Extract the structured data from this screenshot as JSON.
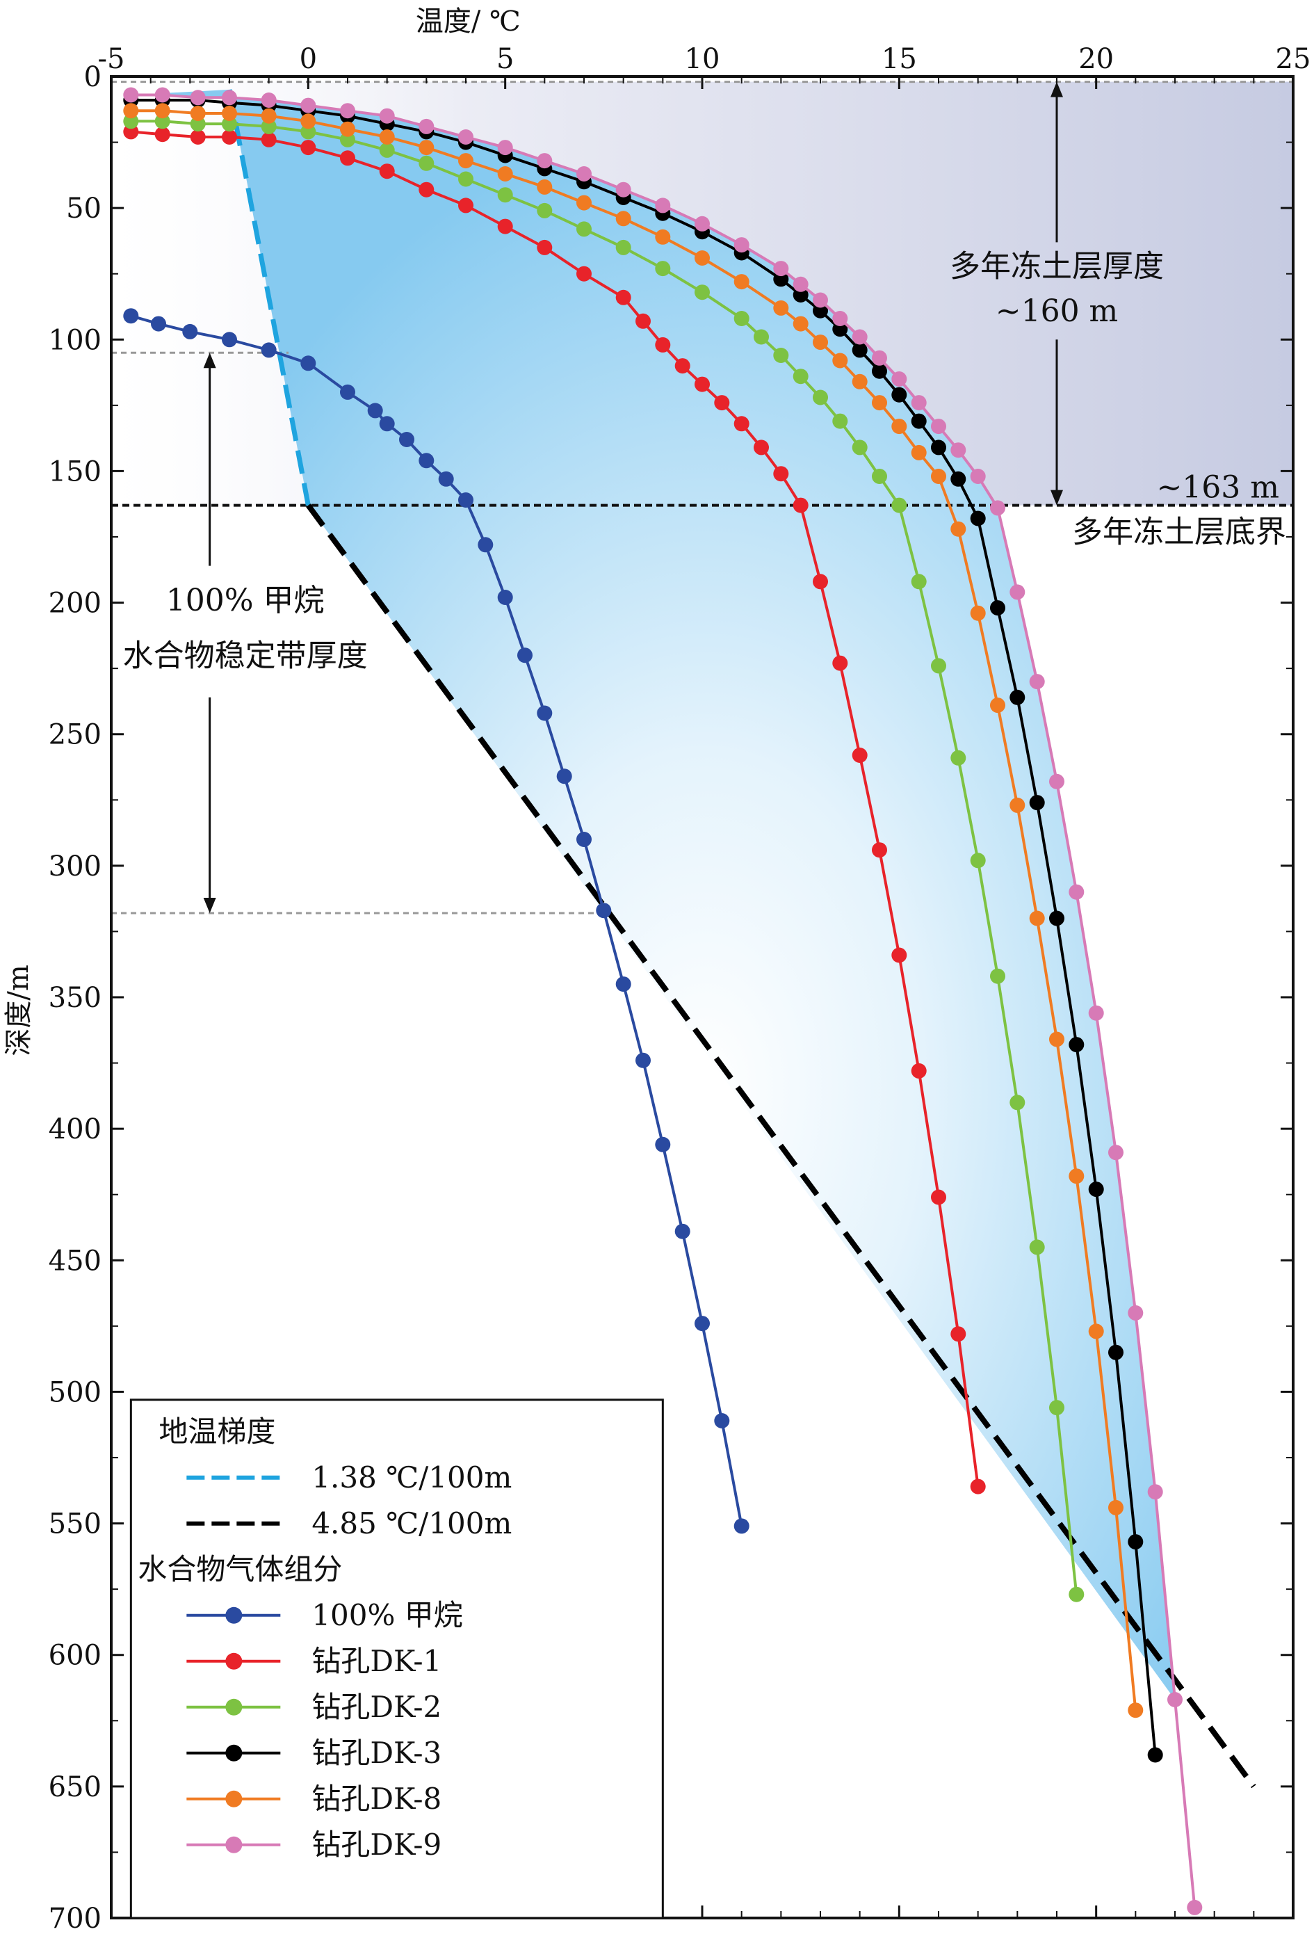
{
  "chart_data": {
    "type": "line",
    "title": "",
    "xlabel": "温度/ ℃",
    "ylabel": "深度/m",
    "xlim": [
      -5,
      25
    ],
    "ylim": [
      0,
      700
    ],
    "y_inverted": true,
    "x_ticks": [
      -5,
      0,
      5,
      10,
      15,
      20,
      25
    ],
    "y_ticks": [
      0,
      50,
      100,
      150,
      200,
      250,
      300,
      350,
      400,
      450,
      500,
      550,
      600,
      650,
      700
    ],
    "grid": false,
    "legend_position": "bottom-left",
    "colors": {
      "gradient_1_38": "#1fa4df",
      "gradient_4_85": "#000000",
      "methane": "#2a4aa0",
      "dk1": "#e8232a",
      "dk2": "#7dc242",
      "dk3": "#000000",
      "dk8": "#f07b22",
      "dk9": "#d77ab6",
      "hsz_fill": "#8fcff2",
      "permafrost_fill": "#c9cde3"
    },
    "legend": {
      "group1_title": "地温梯度",
      "gradient_items": [
        {
          "label": "1.38 ℃/100m",
          "color": "#1fa4df"
        },
        {
          "label": "4.85 ℃/100m",
          "color": "#000000"
        }
      ],
      "group2_title": "水合物气体组分",
      "series_items": [
        {
          "label": "100% 甲烷",
          "color": "#2a4aa0"
        },
        {
          "label": "钻孔DK-1",
          "color": "#e8232a"
        },
        {
          "label": "钻孔DK-2",
          "color": "#7dc242"
        },
        {
          "label": "钻孔DK-3",
          "color": "#000000"
        },
        {
          "label": "钻孔DK-8",
          "color": "#f07b22"
        },
        {
          "label": "钻孔DK-9",
          "color": "#d77ab6"
        }
      ]
    },
    "annotations": {
      "permafrost_thickness_1": "多年冻土层厚度",
      "permafrost_thickness_2": "~160 m",
      "permafrost_base_depth": "~163 m",
      "permafrost_base_label": "多年冻土层底界",
      "hsz_thickness_1": "100% 甲烷",
      "hsz_thickness_2": "水合物稳定带厚度"
    },
    "reference_depths": {
      "permafrost_top": 2,
      "permafrost_base": 163,
      "hsz_top": 105,
      "hsz_base": 318
    },
    "gradient_lines": [
      {
        "name": "1.38 ℃/100m",
        "points": [
          [
            -2,
            5
          ],
          [
            0,
            163
          ]
        ]
      },
      {
        "name": "4.85 ℃/100m",
        "points": [
          [
            0,
            163
          ],
          [
            24,
            650
          ]
        ]
      }
    ],
    "series": [
      {
        "name": "100% 甲烷",
        "points": [
          [
            -4.5,
            91
          ],
          [
            -3.8,
            94
          ],
          [
            -3,
            97
          ],
          [
            -2,
            100
          ],
          [
            -1,
            104
          ],
          [
            0,
            109
          ],
          [
            1,
            120
          ],
          [
            1.7,
            127
          ],
          [
            2,
            132
          ],
          [
            2.5,
            138
          ],
          [
            3,
            146
          ],
          [
            3.5,
            153
          ],
          [
            4,
            161
          ],
          [
            4.5,
            178
          ],
          [
            5,
            198
          ],
          [
            5.5,
            220
          ],
          [
            6,
            242
          ],
          [
            6.5,
            266
          ],
          [
            7,
            290
          ],
          [
            7.5,
            317
          ],
          [
            8,
            345
          ],
          [
            8.5,
            374
          ],
          [
            9,
            406
          ],
          [
            9.5,
            439
          ],
          [
            10,
            474
          ],
          [
            10.5,
            511
          ],
          [
            11,
            551
          ]
        ]
      },
      {
        "name": "钻孔DK-1",
        "points": [
          [
            -4.5,
            21
          ],
          [
            -3.7,
            22
          ],
          [
            -2.8,
            23
          ],
          [
            -2,
            23
          ],
          [
            -1,
            24
          ],
          [
            0,
            27
          ],
          [
            1,
            31
          ],
          [
            2,
            36
          ],
          [
            3,
            43
          ],
          [
            4,
            49
          ],
          [
            5,
            57
          ],
          [
            6,
            65
          ],
          [
            7,
            75
          ],
          [
            8,
            84
          ],
          [
            8.5,
            93
          ],
          [
            9,
            102
          ],
          [
            9.5,
            110
          ],
          [
            10,
            117
          ],
          [
            10.5,
            124
          ],
          [
            11,
            132
          ],
          [
            11.5,
            141
          ],
          [
            12,
            151
          ],
          [
            12.5,
            163
          ],
          [
            13,
            192
          ],
          [
            13.5,
            223
          ],
          [
            14,
            258
          ],
          [
            14.5,
            294
          ],
          [
            15,
            334
          ],
          [
            15.5,
            378
          ],
          [
            16,
            426
          ],
          [
            16.5,
            478
          ],
          [
            17,
            536
          ]
        ]
      },
      {
        "name": "钻孔DK-2",
        "points": [
          [
            -4.5,
            17
          ],
          [
            -3.7,
            17
          ],
          [
            -2.8,
            18
          ],
          [
            -2,
            18
          ],
          [
            -1,
            19
          ],
          [
            0,
            21
          ],
          [
            1,
            24
          ],
          [
            2,
            28
          ],
          [
            3,
            33
          ],
          [
            4,
            39
          ],
          [
            5,
            45
          ],
          [
            6,
            51
          ],
          [
            7,
            58
          ],
          [
            8,
            65
          ],
          [
            9,
            73
          ],
          [
            10,
            82
          ],
          [
            11,
            92
          ],
          [
            11.5,
            99
          ],
          [
            12,
            106
          ],
          [
            12.5,
            114
          ],
          [
            13,
            122
          ],
          [
            13.5,
            131
          ],
          [
            14,
            141
          ],
          [
            14.5,
            152
          ],
          [
            15,
            163
          ],
          [
            15.5,
            192
          ],
          [
            16,
            224
          ],
          [
            16.5,
            259
          ],
          [
            17,
            298
          ],
          [
            17.5,
            342
          ],
          [
            18,
            390
          ],
          [
            18.5,
            445
          ],
          [
            19,
            506
          ],
          [
            19.5,
            577
          ]
        ]
      },
      {
        "name": "钻孔DK-3",
        "points": [
          [
            -4.5,
            9
          ],
          [
            -3.7,
            9
          ],
          [
            -2.8,
            9
          ],
          [
            -2,
            10
          ],
          [
            -1,
            11
          ],
          [
            0,
            13
          ],
          [
            1,
            15
          ],
          [
            2,
            18
          ],
          [
            3,
            21
          ],
          [
            4,
            25
          ],
          [
            5,
            30
          ],
          [
            6,
            35
          ],
          [
            7,
            40
          ],
          [
            8,
            46
          ],
          [
            9,
            52
          ],
          [
            10,
            59
          ],
          [
            11,
            67
          ],
          [
            12,
            77
          ],
          [
            12.5,
            83
          ],
          [
            13,
            89
          ],
          [
            13.5,
            96
          ],
          [
            14,
            104
          ],
          [
            14.5,
            112
          ],
          [
            15,
            121
          ],
          [
            15.5,
            131
          ],
          [
            16,
            141
          ],
          [
            16.5,
            153
          ],
          [
            17,
            168
          ],
          [
            17.5,
            202
          ],
          [
            18,
            236
          ],
          [
            18.5,
            276
          ],
          [
            19,
            320
          ],
          [
            19.5,
            368
          ],
          [
            20,
            423
          ],
          [
            20.5,
            485
          ],
          [
            21,
            557
          ],
          [
            21.5,
            638
          ]
        ]
      },
      {
        "name": "钻孔DK-8",
        "points": [
          [
            -4.5,
            13
          ],
          [
            -3.7,
            13
          ],
          [
            -2.8,
            14
          ],
          [
            -2,
            14
          ],
          [
            -1,
            15
          ],
          [
            0,
            17
          ],
          [
            1,
            20
          ],
          [
            2,
            23
          ],
          [
            3,
            27
          ],
          [
            4,
            32
          ],
          [
            5,
            37
          ],
          [
            6,
            42
          ],
          [
            7,
            48
          ],
          [
            8,
            54
          ],
          [
            9,
            61
          ],
          [
            10,
            69
          ],
          [
            11,
            78
          ],
          [
            12,
            88
          ],
          [
            12.5,
            94
          ],
          [
            13,
            101
          ],
          [
            13.5,
            108
          ],
          [
            14,
            116
          ],
          [
            14.5,
            124
          ],
          [
            15,
            133
          ],
          [
            15.5,
            143
          ],
          [
            16,
            152
          ],
          [
            16.5,
            172
          ],
          [
            17,
            204
          ],
          [
            17.5,
            239
          ],
          [
            18,
            277
          ],
          [
            18.5,
            320
          ],
          [
            19,
            366
          ],
          [
            19.5,
            418
          ],
          [
            20,
            477
          ],
          [
            20.5,
            544
          ],
          [
            21,
            621
          ]
        ]
      },
      {
        "name": "钻孔DK-9",
        "points": [
          [
            -4.5,
            7
          ],
          [
            -3.7,
            7
          ],
          [
            -2.8,
            8
          ],
          [
            -2,
            8
          ],
          [
            -1,
            9
          ],
          [
            0,
            11
          ],
          [
            1,
            13
          ],
          [
            2,
            15
          ],
          [
            3,
            19
          ],
          [
            4,
            23
          ],
          [
            5,
            27
          ],
          [
            6,
            32
          ],
          [
            7,
            37
          ],
          [
            8,
            43
          ],
          [
            9,
            49
          ],
          [
            10,
            56
          ],
          [
            11,
            64
          ],
          [
            12,
            73
          ],
          [
            12.5,
            79
          ],
          [
            13,
            85
          ],
          [
            13.5,
            92
          ],
          [
            14,
            99
          ],
          [
            14.5,
            107
          ],
          [
            15,
            115
          ],
          [
            15.5,
            124
          ],
          [
            16,
            133
          ],
          [
            16.5,
            142
          ],
          [
            17,
            152
          ],
          [
            17.5,
            164
          ],
          [
            18,
            196
          ],
          [
            18.5,
            230
          ],
          [
            19,
            268
          ],
          [
            19.5,
            310
          ],
          [
            20,
            356
          ],
          [
            20.5,
            409
          ],
          [
            21,
            470
          ],
          [
            21.5,
            538
          ],
          [
            22,
            617
          ],
          [
            22.5,
            696
          ]
        ]
      }
    ]
  }
}
